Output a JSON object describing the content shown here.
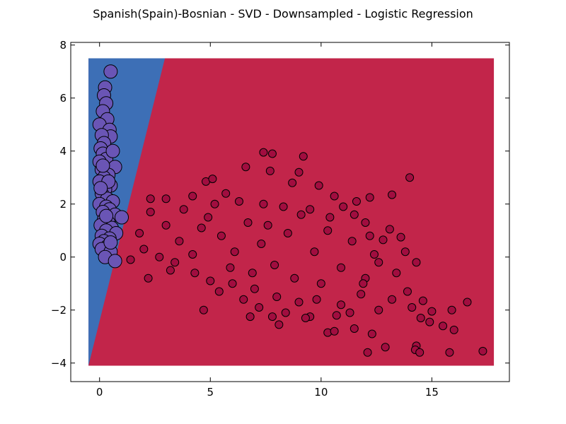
{
  "chart_data": {
    "type": "scatter",
    "title": "Spanish(Spain)-Bosnian - SVD - Downsampled - Logistic Regression",
    "xlabel": "",
    "ylabel": "",
    "xlim": [
      -1.3,
      18.5
    ],
    "ylim": [
      -4.7,
      8.1
    ],
    "xticks": [
      0,
      5,
      10,
      15
    ],
    "yticks": [
      -4,
      -2,
      0,
      2,
      4,
      6,
      8
    ],
    "xtick_labels": [
      "0",
      "5",
      "10",
      "15"
    ],
    "ytick_labels": [
      "−4",
      "−2",
      "0",
      "2",
      "4",
      "6",
      "8"
    ],
    "grid": false,
    "legend": "none",
    "decision_regions": {
      "extent_x": [
        -0.5,
        17.8
      ],
      "extent_y": [
        -4.1,
        7.5
      ],
      "boundary": [
        [
          -0.5,
          -4.1
        ],
        [
          2.95,
          7.5
        ]
      ],
      "left_region_color": "#3d6fb6",
      "right_region_color": "#c2254a"
    },
    "series": [
      {
        "class": "blue",
        "color": "#6a55b5",
        "marker_size": "large",
        "points": [
          [
            0.5,
            7.0
          ],
          [
            0.25,
            6.4
          ],
          [
            0.2,
            6.1
          ],
          [
            0.3,
            5.8
          ],
          [
            0.15,
            5.5
          ],
          [
            0.35,
            5.2
          ],
          [
            0.0,
            5.0
          ],
          [
            0.45,
            4.8
          ],
          [
            0.5,
            4.55
          ],
          [
            0.1,
            4.6
          ],
          [
            0.2,
            4.3
          ],
          [
            0.05,
            4.1
          ],
          [
            0.15,
            3.9
          ],
          [
            0.3,
            3.7
          ],
          [
            0.0,
            3.6
          ],
          [
            0.7,
            3.4
          ],
          [
            0.1,
            3.3
          ],
          [
            0.4,
            3.1
          ],
          [
            0.2,
            3.0
          ],
          [
            0.0,
            2.85
          ],
          [
            0.5,
            2.7
          ],
          [
            0.25,
            2.55
          ],
          [
            0.1,
            2.4
          ],
          [
            0.35,
            2.2
          ],
          [
            0.6,
            2.1
          ],
          [
            0.0,
            2.0
          ],
          [
            0.3,
            1.9
          ],
          [
            0.45,
            1.8
          ],
          [
            0.15,
            1.7
          ],
          [
            0.7,
            1.6
          ],
          [
            1.0,
            1.5
          ],
          [
            0.2,
            1.4
          ],
          [
            0.4,
            1.3
          ],
          [
            0.05,
            1.2
          ],
          [
            0.55,
            1.1
          ],
          [
            0.3,
            1.0
          ],
          [
            0.75,
            0.9
          ],
          [
            0.1,
            0.8
          ],
          [
            0.45,
            0.7
          ],
          [
            0.2,
            0.6
          ],
          [
            0.0,
            0.5
          ],
          [
            0.35,
            0.4
          ],
          [
            0.1,
            0.3
          ],
          [
            0.5,
            0.2
          ],
          [
            0.25,
            0.0
          ],
          [
            0.7,
            -0.15
          ],
          [
            0.15,
            3.45
          ],
          [
            0.4,
            2.85
          ],
          [
            0.6,
            4.0
          ],
          [
            0.05,
            2.6
          ],
          [
            0.3,
            1.55
          ],
          [
            0.5,
            0.55
          ]
        ]
      },
      {
        "class": "red",
        "color": "#a10d3f",
        "marker_size": "small",
        "points": [
          [
            7.4,
            3.95
          ],
          [
            7.8,
            3.9
          ],
          [
            9.2,
            3.8
          ],
          [
            6.6,
            3.4
          ],
          [
            7.7,
            3.25
          ],
          [
            9.0,
            3.2
          ],
          [
            14.0,
            3.0
          ],
          [
            4.8,
            2.85
          ],
          [
            5.1,
            2.95
          ],
          [
            8.7,
            2.8
          ],
          [
            9.9,
            2.7
          ],
          [
            5.7,
            2.4
          ],
          [
            10.6,
            2.3
          ],
          [
            13.2,
            2.35
          ],
          [
            12.2,
            2.25
          ],
          [
            11.6,
            2.1
          ],
          [
            4.2,
            2.3
          ],
          [
            3.0,
            2.2
          ],
          [
            2.3,
            2.2
          ],
          [
            11.0,
            1.9
          ],
          [
            11.5,
            1.6
          ],
          [
            12.0,
            1.3
          ],
          [
            13.1,
            1.05
          ],
          [
            12.8,
            0.65
          ],
          [
            13.6,
            0.75
          ],
          [
            12.2,
            0.8
          ],
          [
            13.8,
            0.2
          ],
          [
            14.3,
            -0.2
          ],
          [
            13.4,
            -0.6
          ],
          [
            13.9,
            -1.3
          ],
          [
            14.6,
            -1.65
          ],
          [
            14.1,
            -1.9
          ],
          [
            14.5,
            -2.3
          ],
          [
            15.0,
            -2.05
          ],
          [
            15.9,
            -2.0
          ],
          [
            16.6,
            -1.7
          ],
          [
            14.9,
            -2.45
          ],
          [
            15.5,
            -2.6
          ],
          [
            16.0,
            -2.75
          ],
          [
            14.3,
            -3.35
          ],
          [
            14.25,
            -3.5
          ],
          [
            14.45,
            -3.6
          ],
          [
            15.8,
            -3.6
          ],
          [
            17.3,
            -3.55
          ],
          [
            12.1,
            -3.6
          ],
          [
            12.9,
            -3.4
          ],
          [
            12.3,
            -2.9
          ],
          [
            11.5,
            -2.7
          ],
          [
            10.3,
            -2.85
          ],
          [
            10.6,
            -2.8
          ],
          [
            8.1,
            -2.55
          ],
          [
            7.8,
            -2.25
          ],
          [
            6.8,
            -2.25
          ],
          [
            4.7,
            -2.0
          ],
          [
            9.5,
            -2.25
          ],
          [
            11.3,
            -2.1
          ],
          [
            10.9,
            -1.8
          ],
          [
            12.6,
            -2.0
          ],
          [
            13.2,
            -1.6
          ],
          [
            11.8,
            -1.4
          ],
          [
            10.0,
            -1.0
          ],
          [
            9.0,
            -1.7
          ],
          [
            8.0,
            -1.5
          ],
          [
            7.0,
            -1.2
          ],
          [
            6.0,
            -1.0
          ],
          [
            5.0,
            -0.9
          ],
          [
            3.2,
            -0.5
          ],
          [
            2.2,
            -0.8
          ],
          [
            2.0,
            0.3
          ],
          [
            1.4,
            -0.1
          ],
          [
            1.8,
            0.9
          ],
          [
            2.3,
            1.7
          ],
          [
            3.0,
            1.2
          ],
          [
            3.6,
            0.6
          ],
          [
            4.2,
            0.1
          ],
          [
            4.9,
            1.5
          ],
          [
            5.5,
            0.8
          ],
          [
            6.1,
            0.2
          ],
          [
            6.7,
            1.3
          ],
          [
            7.3,
            0.5
          ],
          [
            7.9,
            -0.3
          ],
          [
            8.5,
            0.9
          ],
          [
            9.1,
            1.6
          ],
          [
            9.7,
            0.2
          ],
          [
            10.3,
            1.0
          ],
          [
            10.9,
            -0.4
          ],
          [
            11.4,
            0.6
          ],
          [
            12.0,
            -0.8
          ],
          [
            12.6,
            -0.2
          ],
          [
            5.2,
            2.0
          ],
          [
            6.3,
            2.1
          ],
          [
            7.4,
            2.0
          ],
          [
            8.3,
            1.9
          ],
          [
            9.5,
            1.8
          ],
          [
            10.4,
            1.5
          ],
          [
            3.8,
            1.8
          ],
          [
            4.6,
            1.1
          ],
          [
            5.9,
            -0.4
          ],
          [
            6.9,
            -0.6
          ],
          [
            7.6,
            1.2
          ],
          [
            8.8,
            -0.8
          ],
          [
            9.8,
            -1.6
          ],
          [
            10.7,
            -2.2
          ],
          [
            11.9,
            -1.0
          ],
          [
            12.4,
            0.1
          ],
          [
            2.7,
            0.0
          ],
          [
            3.4,
            -0.2
          ],
          [
            4.3,
            -0.6
          ],
          [
            5.4,
            -1.3
          ],
          [
            6.5,
            -1.6
          ],
          [
            7.2,
            -1.9
          ],
          [
            8.4,
            -2.1
          ],
          [
            9.3,
            -2.3
          ]
        ]
      }
    ]
  }
}
